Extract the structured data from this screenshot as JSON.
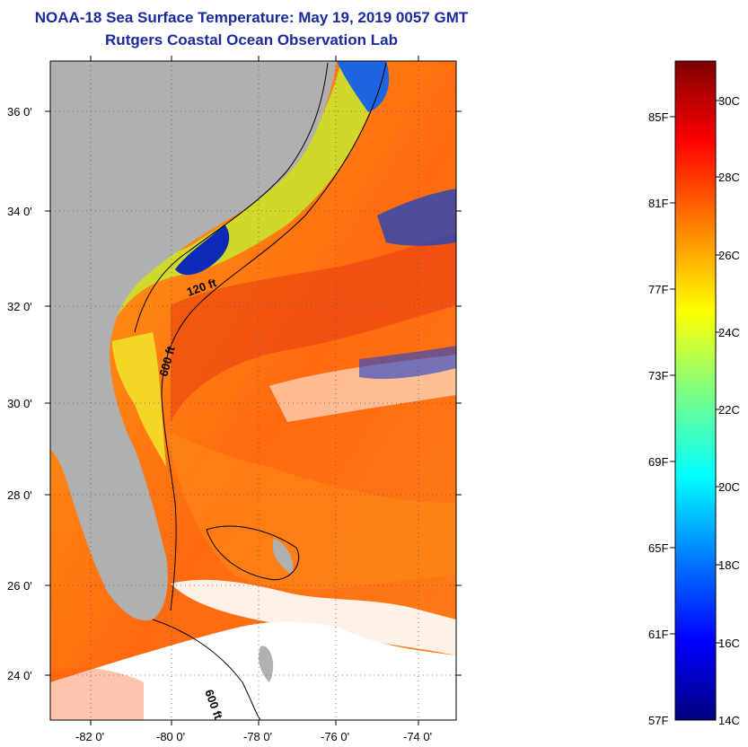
{
  "title": "NOAA-18 Sea Surface Temperature:  May 19, 2019 0057 GMT",
  "subtitle": "Rutgers Coastal Ocean Observation Lab",
  "map": {
    "lat_labels": [
      "36 0'",
      "34 0'",
      "32 0'",
      "30 0'",
      "28 0'",
      "26 0'",
      "24 0'"
    ],
    "lon_labels": [
      "-82 0'",
      "-80 0'",
      "-78 0'",
      "-76 0'",
      "-74 0'"
    ],
    "contour_labels": [
      "120 ft",
      "600 ft",
      "600 ft"
    ]
  },
  "colorbar": {
    "fahrenheit_labels": [
      "85F",
      "81F",
      "77F",
      "73F",
      "69F",
      "65F",
      "61F",
      "57F"
    ],
    "celsius_labels": [
      "30C",
      "28C",
      "26C",
      "24C",
      "22C",
      "20C",
      "18C",
      "16C",
      "14C"
    ]
  },
  "colors": {
    "title": "#1a2a9c",
    "land": "#b0b0b0",
    "warm": "#e83a10",
    "cold": "#0c2ab8"
  }
}
